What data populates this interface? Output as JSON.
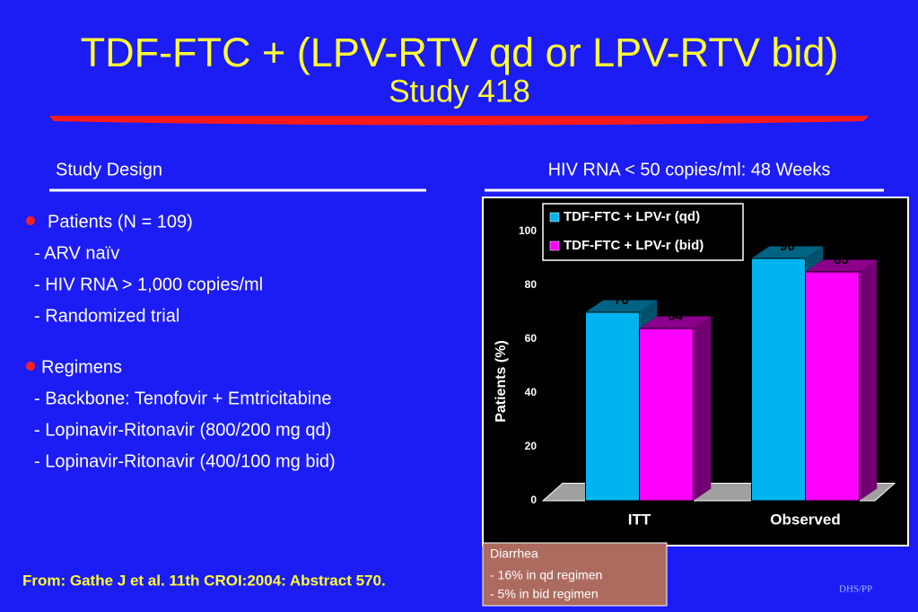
{
  "title": "TDF-FTC + (LPV-RTV qd or LPV-RTV bid)",
  "subtitle": "Study 418",
  "study_design": {
    "heading": "Study Design",
    "bullets": [
      {
        "label": "Patients (N = 109)",
        "items": [
          "- ARV naïv",
          "- HIV RNA > 1,000 copies/ml",
          "- Randomized trial"
        ]
      },
      {
        "label": "Regimens",
        "items": [
          "- Backbone: Tenofovir + Emtricitabine",
          "- Lopinavir-Ritonavir (800/200 mg qd)",
          "- Lopinavir-Ritonavir (400/100 mg bid)"
        ]
      }
    ]
  },
  "chart_data": {
    "type": "bar",
    "title": "HIV RNA < 50 copies/ml: 48 Weeks",
    "y_label": "Patients (%)",
    "categories": [
      "ITT",
      "Observed"
    ],
    "series": [
      {
        "name": "TDF-FTC + LPV-r (qd)",
        "color": "#00b4f0",
        "values": [
          70,
          90
        ]
      },
      {
        "name": "TDF-FTC + LPV-r (bid)",
        "color": "#ff00ff",
        "values": [
          64,
          85
        ]
      }
    ],
    "ylim": [
      0,
      100
    ],
    "yticks": [
      0,
      20,
      40,
      60,
      80,
      100
    ]
  },
  "note": [
    "Diarrhea",
    "- 16% in qd regimen",
    "- 5% in bid regimen"
  ],
  "source": "From:  Gathe J et al. 11th CROI:2004: Abstract 570.",
  "footer": "DHS/PP"
}
